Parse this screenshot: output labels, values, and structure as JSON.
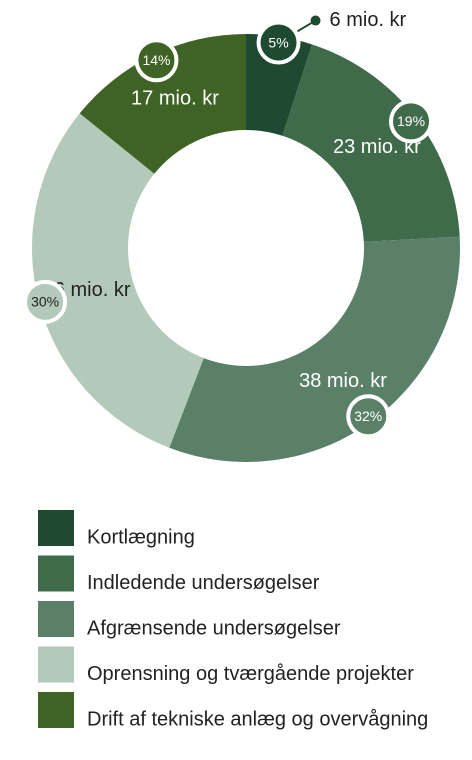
{
  "chart_data": {
    "type": "donut",
    "categories": [
      "Kortlægning",
      "Indledende undersøgelser",
      "Afgrænsende undersøgelser",
      "Oprensning og tværgående projekter",
      "Drift af tekniske anlæg og overvågning"
    ],
    "values": [
      6,
      23,
      38,
      36,
      17
    ],
    "value_labels": [
      "6 mio. kr",
      "23 mio. kr",
      "38 mio. kr",
      "36 mio. kr",
      "17 mio. kr"
    ],
    "percent_labels": [
      "5%",
      "19%",
      "32%",
      "30%",
      "14%"
    ],
    "colors": [
      "#1e4a32",
      "#3f6b4b",
      "#5a8168",
      "#b3c9b9",
      "#3f6324"
    ]
  }
}
